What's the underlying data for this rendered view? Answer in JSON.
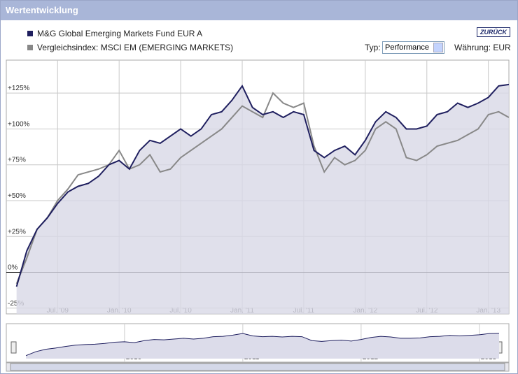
{
  "header": {
    "title": "Wertentwicklung"
  },
  "controls": {
    "back_button": "ZURÜCK",
    "type_label": "Typ:",
    "type_value": "Performance",
    "currency": "Währung: EUR"
  },
  "chart_data": {
    "type": "line",
    "x": [
      "2009-03",
      "2009-04",
      "2009-05",
      "2009-06",
      "2009-07",
      "2009-08",
      "2009-09",
      "2009-10",
      "2009-11",
      "2009-12",
      "2010-01",
      "2010-02",
      "2010-03",
      "2010-04",
      "2010-05",
      "2010-06",
      "2010-07",
      "2010-08",
      "2010-09",
      "2010-10",
      "2010-11",
      "2010-12",
      "2011-01",
      "2011-02",
      "2011-03",
      "2011-04",
      "2011-05",
      "2011-06",
      "2011-07",
      "2011-08",
      "2011-09",
      "2011-10",
      "2011-11",
      "2011-12",
      "2012-01",
      "2012-02",
      "2012-03",
      "2012-04",
      "2012-05",
      "2012-06",
      "2012-07",
      "2012-08",
      "2012-09",
      "2012-10",
      "2012-11",
      "2012-12",
      "2013-01",
      "2013-02",
      "2013-03"
    ],
    "series": [
      {
        "name": "M&G Global Emerging Markets Fund EUR A",
        "color": "#1f1f5f",
        "values": [
          -10,
          15,
          30,
          38,
          48,
          56,
          60,
          62,
          67,
          75,
          78,
          72,
          85,
          92,
          90,
          95,
          100,
          95,
          100,
          110,
          112,
          120,
          130,
          115,
          110,
          112,
          108,
          112,
          110,
          85,
          80,
          85,
          88,
          82,
          92,
          105,
          112,
          108,
          100,
          100,
          102,
          110,
          112,
          118,
          115,
          118,
          122,
          130,
          131
        ]
      },
      {
        "name": "Vergleichsindex: MSCI EM (EMERGING MARKETS)",
        "color": "#888888",
        "values": [
          -8,
          10,
          30,
          38,
          50,
          58,
          68,
          70,
          72,
          75,
          85,
          72,
          75,
          82,
          70,
          72,
          80,
          85,
          90,
          95,
          100,
          108,
          116,
          112,
          108,
          125,
          118,
          115,
          118,
          88,
          70,
          80,
          75,
          78,
          85,
          100,
          105,
          100,
          80,
          78,
          82,
          88,
          90,
          92,
          96,
          100,
          110,
          112,
          108
        ]
      }
    ],
    "xlim": [
      "2009-02",
      "2013-03"
    ],
    "xticks": [
      {
        "value": "2009-07",
        "label": "Jul. '09"
      },
      {
        "value": "2010-01",
        "label": "Jan. '10"
      },
      {
        "value": "2010-07",
        "label": "Jul. '10"
      },
      {
        "value": "2011-01",
        "label": "Jan. '11"
      },
      {
        "value": "2011-07",
        "label": "Jul. '11"
      },
      {
        "value": "2012-01",
        "label": "Jan. '12"
      },
      {
        "value": "2012-07",
        "label": "Jul. '12"
      },
      {
        "value": "2013-01",
        "label": "Jan. '13"
      }
    ],
    "ylim": [
      -29,
      148
    ],
    "yticks": [
      {
        "value": -25,
        "label": "-25%"
      },
      {
        "value": 0,
        "label": "0%"
      },
      {
        "value": 25,
        "label": "+25%"
      },
      {
        "value": 50,
        "label": "+50%"
      },
      {
        "value": 75,
        "label": "+75%"
      },
      {
        "value": 100,
        "label": "+100%"
      },
      {
        "value": 125,
        "label": "+125%"
      }
    ],
    "grid": true
  },
  "navigator": {
    "xticks": [
      {
        "value": "2010-01",
        "label": "2010"
      },
      {
        "value": "2011-01",
        "label": "2011"
      },
      {
        "value": "2012-01",
        "label": "2012"
      },
      {
        "value": "2013-01",
        "label": "2013"
      }
    ]
  }
}
